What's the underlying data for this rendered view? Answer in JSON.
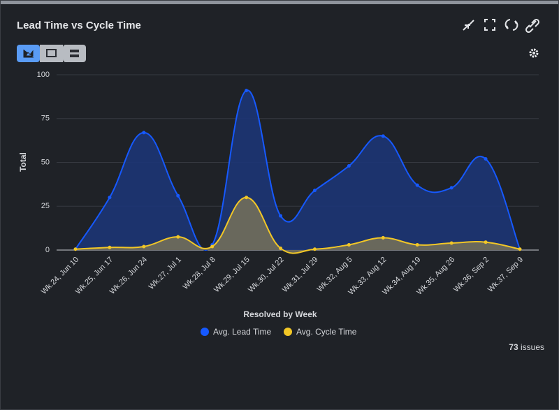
{
  "header": {
    "title": "Lead Time vs Cycle Time"
  },
  "chart_data": {
    "type": "area",
    "x_label": "Resolved by Week",
    "y_label": "Total",
    "categories": [
      "Wk.24, Jun 10",
      "Wk.25, Jun 17",
      "Wk.26, Jun 24",
      "Wk.27, Jul 1",
      "Wk.28, Jul 8",
      "Wk.29, Jul 15",
      "Wk.30, Jul 22",
      "Wk.31, Jul 29",
      "Wk.32, Aug 5",
      "Wk.33, Aug 12",
      "Wk.34, Aug 19",
      "Wk.35, Aug 26",
      "Wk.36, Sep 2",
      "Wk.37, Sep 9"
    ],
    "series": [
      {
        "name": "Avg. Lead Time",
        "color": "#1659ff",
        "fill": "#1c3576",
        "values": [
          0.5,
          30,
          67,
          31,
          3,
          91,
          19.5,
          34,
          48,
          65,
          37,
          35.5,
          52,
          0.5
        ]
      },
      {
        "name": "Avg. Cycle Time",
        "color": "#f2c726",
        "fill": "#6e6c5c",
        "values": [
          0.5,
          1.5,
          2,
          7.5,
          2,
          30,
          1,
          0.5,
          3,
          7,
          3,
          4,
          4.5,
          0.5
        ]
      }
    ],
    "ylim": [
      0,
      100
    ],
    "yticks": [
      0,
      25,
      50,
      75,
      100
    ],
    "grid": true,
    "legend": "bottom"
  },
  "footer": {
    "count": 73,
    "label": "issues"
  }
}
